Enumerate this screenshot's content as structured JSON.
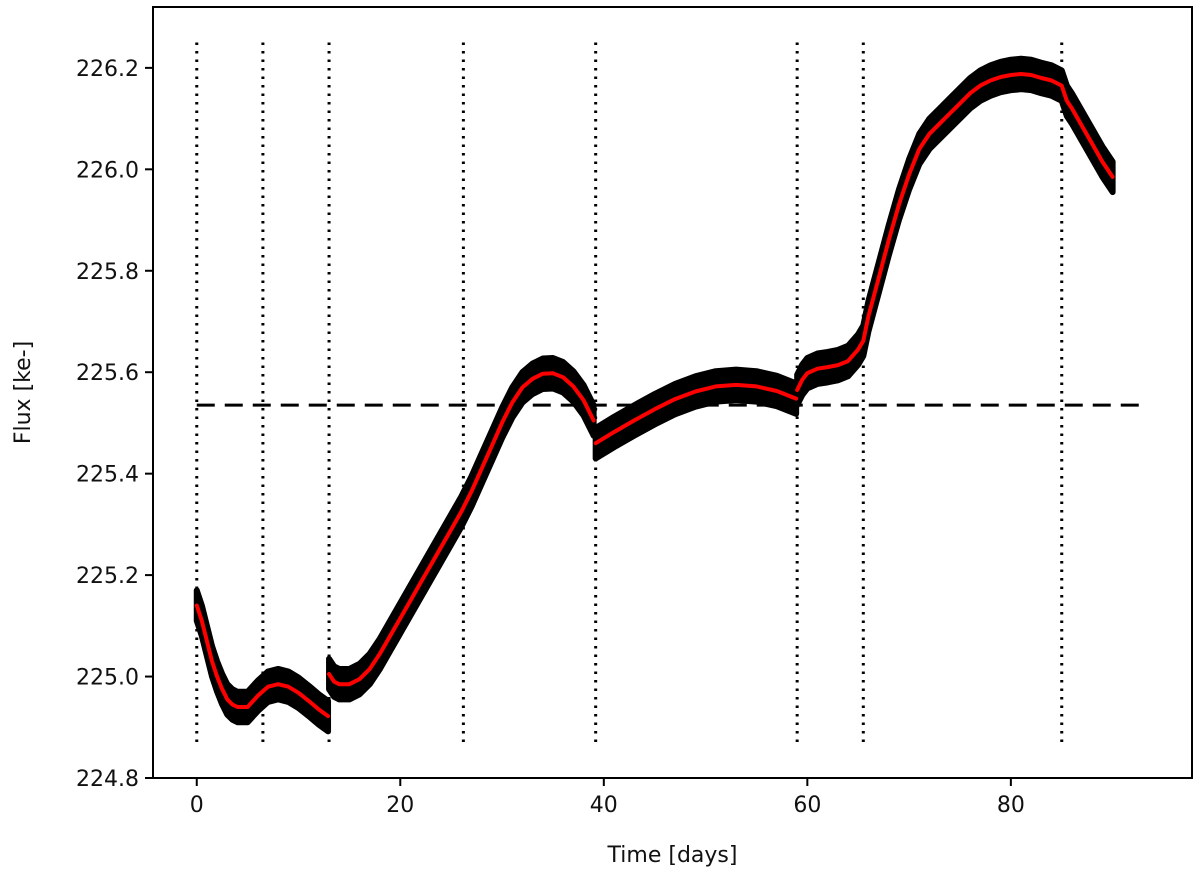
{
  "chart_data": {
    "type": "line",
    "xlabel": "Time [days]",
    "ylabel": "Flux [ke-]",
    "xlim": [
      -4.3,
      97.8
    ],
    "ylim": [
      224.8,
      226.32
    ],
    "x_ticks": [
      0,
      20,
      40,
      60,
      80
    ],
    "y_ticks": [
      224.8,
      225.0,
      225.2,
      225.4,
      225.6,
      225.8,
      226.0,
      226.2
    ],
    "grid": false,
    "legend": "none",
    "colors": {
      "data": "#000000",
      "model": "#ff0000",
      "reference": "#000000",
      "segments": "#000000"
    },
    "reference_level": 225.535,
    "reference_x_range": [
      0,
      93.5
    ],
    "segment_boundaries": [
      0,
      6.5,
      13.0,
      26.2,
      39.2,
      59.0,
      65.5,
      85.0
    ],
    "segment_y_range": [
      224.87,
      226.25
    ],
    "noise_amplitude": 0.03,
    "series": [
      {
        "segments": [
          {
            "x": [
              0,
              0.5,
              1,
              1.5,
              2,
              2.5,
              3,
              3.5,
              4,
              5,
              6,
              7,
              8,
              9,
              10,
              11,
              12,
              12.9
            ],
            "y": [
              225.14,
              225.11,
              225.07,
              225.03,
              225.0,
              224.975,
              224.955,
              224.945,
              224.94,
              224.94,
              224.962,
              224.98,
              224.985,
              224.98,
              224.968,
              224.952,
              224.935,
              224.922
            ]
          },
          {
            "x": [
              13.0,
              13.5,
              14,
              15,
              16,
              17,
              18,
              19,
              20,
              21,
              22,
              23,
              24,
              25,
              26,
              27,
              28,
              29,
              30,
              31,
              32,
              33,
              34,
              35,
              36,
              37,
              38,
              39
            ],
            "y": [
              225.005,
              224.99,
              224.985,
              224.985,
              224.995,
              225.015,
              225.045,
              225.08,
              225.115,
              225.15,
              225.185,
              225.22,
              225.255,
              225.29,
              225.325,
              225.365,
              225.41,
              225.455,
              225.5,
              225.54,
              225.57,
              225.587,
              225.597,
              225.598,
              225.59,
              225.572,
              225.545,
              225.505
            ]
          },
          {
            "x": [
              39.2,
              41,
              43,
              45,
              47,
              49,
              51,
              53,
              55,
              57,
              58.9
            ],
            "y": [
              225.46,
              225.482,
              225.505,
              225.527,
              225.547,
              225.562,
              225.572,
              225.575,
              225.572,
              225.563,
              225.548
            ]
          },
          {
            "x": [
              59.0,
              59.5,
              60,
              61,
              62,
              63,
              64,
              65,
              65.5,
              66,
              67,
              68,
              69,
              70,
              71,
              72,
              73,
              74,
              75,
              76,
              77,
              78,
              79,
              80,
              81,
              82,
              83,
              84,
              85,
              85.5,
              86,
              87,
              88,
              89,
              90
            ],
            "y": [
              225.565,
              225.585,
              225.598,
              225.607,
              225.61,
              225.614,
              225.622,
              225.645,
              225.662,
              225.71,
              225.785,
              225.86,
              225.93,
              225.99,
              226.04,
              226.07,
              226.09,
              226.11,
              226.13,
              226.15,
              226.165,
              226.175,
              226.182,
              226.186,
              226.188,
              226.186,
              226.18,
              226.175,
              226.165,
              226.135,
              226.12,
              226.085,
              226.05,
              226.015,
              225.985
            ]
          }
        ]
      }
    ]
  }
}
